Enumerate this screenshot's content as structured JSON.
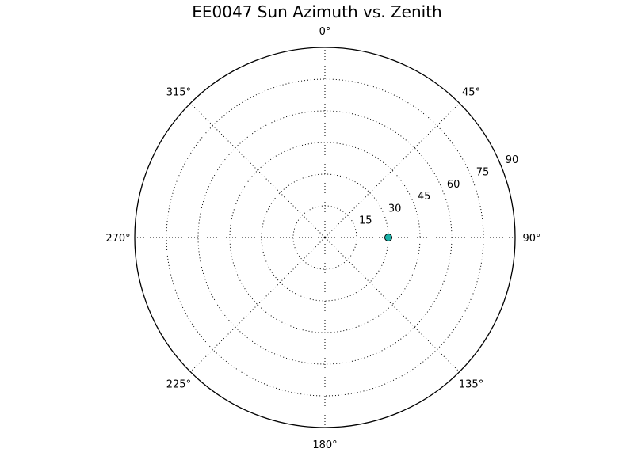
{
  "chart_data": {
    "type": "scatter",
    "projection": "polar",
    "title": "EE0047 Sun Azimuth vs. Zenith",
    "theta_direction": "clockwise",
    "theta_zero_location": "top",
    "angle_ticks": [
      0,
      45,
      90,
      135,
      180,
      225,
      270,
      315
    ],
    "angle_tick_labels": [
      "0°",
      "45°",
      "90°",
      "135°",
      "180°",
      "225°",
      "270°",
      "315°"
    ],
    "radial_ticks": [
      15,
      30,
      45,
      60,
      75,
      90
    ],
    "radial_tick_labels": [
      "15",
      "30",
      "45",
      "60",
      "75",
      "90"
    ],
    "rlim": [
      0,
      90
    ],
    "grid": true,
    "series": [
      {
        "points": [
          {
            "azimuth": 90,
            "zenith": 30
          }
        ],
        "marker": "circle",
        "color": "#1ab2a8",
        "edge_color": "#000000"
      }
    ]
  }
}
